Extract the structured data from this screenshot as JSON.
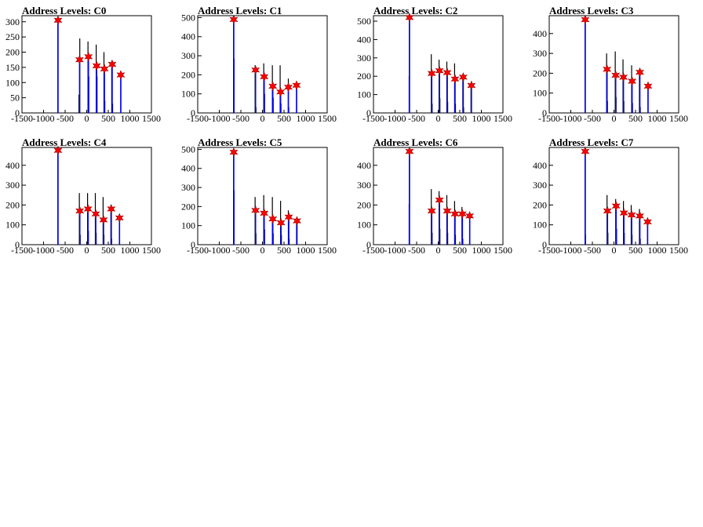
{
  "chart_data": [
    {
      "type": "histogram",
      "title": "Address Levels: C0",
      "xlim": [
        -1500,
        1500
      ],
      "ylim": [
        0,
        320
      ],
      "xticks": [
        -1500,
        -1000,
        -500,
        0,
        500,
        1000,
        1500
      ],
      "yticks": [
        0,
        50,
        100,
        150,
        200,
        250,
        300
      ],
      "black_spikes": [
        [
          -670,
          300
        ],
        [
          -180,
          60
        ],
        [
          -160,
          245
        ],
        [
          30,
          235
        ],
        [
          50,
          120
        ],
        [
          220,
          225
        ],
        [
          240,
          120
        ],
        [
          400,
          200
        ],
        [
          420,
          40
        ],
        [
          580,
          150
        ],
        [
          600,
          30
        ],
        [
          790,
          120
        ]
      ],
      "blue_spikes": [
        [
          -665,
          305
        ],
        [
          -165,
          175
        ],
        [
          40,
          185
        ],
        [
          230,
          155
        ],
        [
          410,
          145
        ],
        [
          590,
          160
        ],
        [
          790,
          125
        ]
      ],
      "peaks": [
        [
          -665,
          305
        ],
        [
          -165,
          175
        ],
        [
          40,
          185
        ],
        [
          230,
          155
        ],
        [
          410,
          145
        ],
        [
          590,
          160
        ],
        [
          790,
          125
        ]
      ]
    },
    {
      "type": "histogram",
      "title": "Address Levels: C1",
      "xlim": [
        -1500,
        1500
      ],
      "ylim": [
        0,
        510
      ],
      "xticks": [
        -1500,
        -1000,
        -500,
        0,
        500,
        1000,
        1500
      ],
      "yticks": [
        0,
        100,
        200,
        300,
        400,
        500
      ],
      "black_spikes": [
        [
          -670,
          480
        ],
        [
          -170,
          250
        ],
        [
          -150,
          30
        ],
        [
          30,
          260
        ],
        [
          50,
          100
        ],
        [
          230,
          250
        ],
        [
          250,
          80
        ],
        [
          410,
          250
        ],
        [
          430,
          50
        ],
        [
          600,
          180
        ],
        [
          610,
          30
        ],
        [
          790,
          150
        ]
      ],
      "blue_spikes": [
        [
          -665,
          490
        ],
        [
          -660,
          285
        ],
        [
          -160,
          225
        ],
        [
          40,
          190
        ],
        [
          240,
          140
        ],
        [
          420,
          110
        ],
        [
          600,
          135
        ],
        [
          790,
          145
        ]
      ],
      "peaks": [
        [
          -665,
          490
        ],
        [
          -160,
          225
        ],
        [
          40,
          190
        ],
        [
          240,
          140
        ],
        [
          420,
          110
        ],
        [
          600,
          135
        ],
        [
          790,
          145
        ]
      ]
    },
    {
      "type": "histogram",
      "title": "Address Levels: C2",
      "xlim": [
        -1500,
        1500
      ],
      "ylim": [
        0,
        530
      ],
      "xticks": [
        -1500,
        -1000,
        -500,
        0,
        500,
        1000,
        1500
      ],
      "yticks": [
        0,
        100,
        200,
        300,
        400,
        500
      ],
      "black_spikes": [
        [
          -670,
          500
        ],
        [
          -160,
          320
        ],
        [
          -140,
          50
        ],
        [
          20,
          290
        ],
        [
          40,
          80
        ],
        [
          200,
          280
        ],
        [
          220,
          60
        ],
        [
          380,
          270
        ],
        [
          400,
          50
        ],
        [
          570,
          200
        ],
        [
          590,
          30
        ],
        [
          760,
          160
        ]
      ],
      "blue_spikes": [
        [
          -665,
          520
        ],
        [
          -670,
          200
        ],
        [
          -150,
          215
        ],
        [
          30,
          230
        ],
        [
          210,
          220
        ],
        [
          390,
          185
        ],
        [
          580,
          195
        ],
        [
          770,
          150
        ]
      ],
      "peaks": [
        [
          -665,
          520
        ],
        [
          -150,
          215
        ],
        [
          30,
          230
        ],
        [
          210,
          220
        ],
        [
          390,
          185
        ],
        [
          580,
          195
        ],
        [
          770,
          150
        ]
      ]
    },
    {
      "type": "histogram",
      "title": "Address Levels: C3",
      "xlim": [
        -1500,
        1500
      ],
      "ylim": [
        0,
        490
      ],
      "xticks": [
        -1500,
        -1000,
        -500,
        0,
        500,
        1000,
        1500
      ],
      "yticks": [
        0,
        100,
        200,
        300,
        400
      ],
      "black_spikes": [
        [
          -670,
          460
        ],
        [
          -170,
          300
        ],
        [
          -150,
          60
        ],
        [
          30,
          310
        ],
        [
          50,
          80
        ],
        [
          210,
          270
        ],
        [
          230,
          60
        ],
        [
          410,
          240
        ],
        [
          430,
          50
        ],
        [
          590,
          200
        ],
        [
          610,
          30
        ],
        [
          790,
          140
        ]
      ],
      "blue_spikes": [
        [
          -665,
          470
        ],
        [
          -160,
          220
        ],
        [
          40,
          190
        ],
        [
          220,
          180
        ],
        [
          420,
          160
        ],
        [
          600,
          205
        ],
        [
          790,
          135
        ]
      ],
      "peaks": [
        [
          -665,
          470
        ],
        [
          -160,
          220
        ],
        [
          40,
          190
        ],
        [
          220,
          180
        ],
        [
          420,
          160
        ],
        [
          600,
          205
        ],
        [
          790,
          135
        ]
      ]
    },
    {
      "type": "histogram",
      "title": "Address Levels: C4",
      "xlim": [
        -1500,
        1500
      ],
      "ylim": [
        0,
        490
      ],
      "xticks": [
        -1500,
        -1000,
        -500,
        0,
        500,
        1000,
        1500
      ],
      "yticks": [
        0,
        100,
        200,
        300,
        400
      ],
      "black_spikes": [
        [
          -670,
          460
        ],
        [
          -170,
          260
        ],
        [
          -150,
          50
        ],
        [
          20,
          260
        ],
        [
          40,
          70
        ],
        [
          200,
          260
        ],
        [
          220,
          60
        ],
        [
          380,
          240
        ],
        [
          400,
          50
        ],
        [
          560,
          200
        ],
        [
          580,
          30
        ],
        [
          760,
          140
        ]
      ],
      "blue_spikes": [
        [
          -665,
          475
        ],
        [
          -160,
          170
        ],
        [
          30,
          180
        ],
        [
          210,
          155
        ],
        [
          390,
          125
        ],
        [
          570,
          180
        ],
        [
          760,
          135
        ]
      ],
      "peaks": [
        [
          -665,
          475
        ],
        [
          -160,
          170
        ],
        [
          30,
          180
        ],
        [
          210,
          155
        ],
        [
          390,
          125
        ],
        [
          570,
          180
        ],
        [
          760,
          135
        ]
      ]
    },
    {
      "type": "histogram",
      "title": "Address Levels: C5",
      "xlim": [
        -1500,
        1500
      ],
      "ylim": [
        0,
        510
      ],
      "xticks": [
        -1500,
        -1000,
        -500,
        0,
        500,
        1000,
        1500
      ],
      "yticks": [
        0,
        100,
        200,
        300,
        400,
        500
      ],
      "black_spikes": [
        [
          -670,
          480
        ],
        [
          -170,
          250
        ],
        [
          -150,
          60
        ],
        [
          30,
          260
        ],
        [
          50,
          80
        ],
        [
          230,
          250
        ],
        [
          250,
          60
        ],
        [
          420,
          230
        ],
        [
          440,
          50
        ],
        [
          600,
          180
        ],
        [
          620,
          30
        ],
        [
          790,
          140
        ]
      ],
      "blue_spikes": [
        [
          -665,
          485
        ],
        [
          -660,
          285
        ],
        [
          -160,
          180
        ],
        [
          40,
          165
        ],
        [
          240,
          135
        ],
        [
          430,
          115
        ],
        [
          610,
          145
        ],
        [
          800,
          125
        ]
      ],
      "peaks": [
        [
          -665,
          485
        ],
        [
          -160,
          180
        ],
        [
          40,
          165
        ],
        [
          240,
          135
        ],
        [
          430,
          115
        ],
        [
          610,
          145
        ],
        [
          800,
          125
        ]
      ]
    },
    {
      "type": "histogram",
      "title": "Address Levels: C6",
      "xlim": [
        -1500,
        1500
      ],
      "ylim": [
        0,
        490
      ],
      "xticks": [
        -1500,
        -1000,
        -500,
        0,
        500,
        1000,
        1500
      ],
      "yticks": [
        0,
        100,
        200,
        300,
        400
      ],
      "black_spikes": [
        [
          -670,
          460
        ],
        [
          -160,
          280
        ],
        [
          -140,
          60
        ],
        [
          20,
          270
        ],
        [
          40,
          80
        ],
        [
          200,
          250
        ],
        [
          220,
          60
        ],
        [
          380,
          220
        ],
        [
          400,
          50
        ],
        [
          550,
          190
        ],
        [
          570,
          30
        ],
        [
          730,
          150
        ]
      ],
      "blue_spikes": [
        [
          -665,
          470
        ],
        [
          -670,
          205
        ],
        [
          -150,
          170
        ],
        [
          30,
          225
        ],
        [
          210,
          170
        ],
        [
          390,
          155
        ],
        [
          560,
          155
        ],
        [
          730,
          145
        ]
      ],
      "peaks": [
        [
          -665,
          470
        ],
        [
          -150,
          170
        ],
        [
          30,
          225
        ],
        [
          210,
          170
        ],
        [
          390,
          155
        ],
        [
          560,
          155
        ],
        [
          730,
          145
        ]
      ]
    },
    {
      "type": "histogram",
      "title": "Address Levels: C7",
      "xlim": [
        -1500,
        1500
      ],
      "ylim": [
        0,
        490
      ],
      "xticks": [
        -1500,
        -1000,
        -500,
        0,
        500,
        1000,
        1500
      ],
      "yticks": [
        0,
        100,
        200,
        300,
        400
      ],
      "black_spikes": [
        [
          -670,
          460
        ],
        [
          -160,
          250
        ],
        [
          -140,
          60
        ],
        [
          40,
          230
        ],
        [
          60,
          80
        ],
        [
          220,
          220
        ],
        [
          240,
          60
        ],
        [
          400,
          200
        ],
        [
          420,
          50
        ],
        [
          590,
          180
        ],
        [
          610,
          30
        ],
        [
          780,
          120
        ]
      ],
      "blue_spikes": [
        [
          -665,
          470
        ],
        [
          -660,
          50
        ],
        [
          -150,
          170
        ],
        [
          50,
          195
        ],
        [
          230,
          160
        ],
        [
          410,
          150
        ],
        [
          600,
          145
        ],
        [
          780,
          115
        ]
      ],
      "peaks": [
        [
          -665,
          470
        ],
        [
          -150,
          170
        ],
        [
          50,
          195
        ],
        [
          230,
          160
        ],
        [
          410,
          150
        ],
        [
          600,
          145
        ],
        [
          780,
          115
        ]
      ]
    }
  ]
}
